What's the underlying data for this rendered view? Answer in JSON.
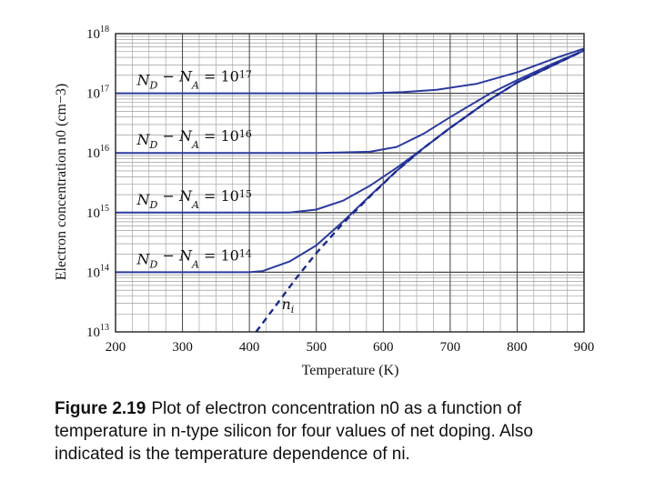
{
  "chart_data": {
    "type": "line",
    "y_scale": "log",
    "xlabel": "Temperature (K)",
    "ylabel": "Electron concentration n0 (cm−3)",
    "xlim": [
      200,
      900
    ],
    "ylim_exponent": [
      13,
      18
    ],
    "x_ticks": [
      200,
      300,
      400,
      500,
      600,
      700,
      800,
      900
    ],
    "y_tick_base": "10",
    "y_tick_exponents": [
      "13",
      "14",
      "15",
      "16",
      "17",
      "18"
    ],
    "grid": true,
    "series": [
      {
        "name": "N_D − N_A = 10^17",
        "label_exponent": "17",
        "style": "solid",
        "color": "#2b3a9e",
        "x": [
          200,
          300,
          400,
          500,
          580,
          630,
          680,
          740,
          800,
          860,
          900
        ],
        "log10_y": [
          17.0,
          17.0,
          17.0,
          17.0,
          17.0,
          17.02,
          17.06,
          17.16,
          17.35,
          17.6,
          17.75
        ]
      },
      {
        "name": "N_D − N_A = 10^16",
        "label_exponent": "16",
        "style": "solid",
        "color": "#2b3a9e",
        "x": [
          200,
          300,
          400,
          500,
          580,
          620,
          660,
          700,
          760,
          800,
          850,
          900
        ],
        "log10_y": [
          16.0,
          16.0,
          16.0,
          16.0,
          16.02,
          16.1,
          16.32,
          16.6,
          17.0,
          17.22,
          17.48,
          17.72
        ]
      },
      {
        "name": "N_D − N_A = 10^15",
        "label_exponent": "15",
        "style": "solid",
        "color": "#2b3a9e",
        "x": [
          200,
          300,
          400,
          460,
          500,
          540,
          580,
          620,
          660,
          700,
          760,
          800,
          850,
          900
        ],
        "log10_y": [
          15.0,
          15.0,
          15.0,
          15.0,
          15.05,
          15.2,
          15.45,
          15.75,
          16.08,
          16.42,
          16.9,
          17.18,
          17.45,
          17.72
        ]
      },
      {
        "name": "N_D − N_A = 10^14",
        "label_exponent": "14",
        "style": "solid",
        "color": "#2b3a9e",
        "x": [
          200,
          300,
          400,
          420,
          460,
          500,
          540,
          580,
          620,
          660,
          700,
          760,
          800,
          850,
          900
        ],
        "log10_y": [
          14.0,
          14.0,
          14.0,
          14.02,
          14.18,
          14.45,
          14.85,
          15.28,
          15.7,
          16.08,
          16.42,
          16.9,
          17.18,
          17.45,
          17.72
        ]
      },
      {
        "name": "n_i",
        "label_text": "n",
        "label_sub": "i",
        "style": "dashed",
        "color": "#1a2a8c",
        "x": [
          410,
          440,
          470,
          500,
          540,
          580,
          620,
          660,
          700,
          760,
          800,
          850,
          900
        ],
        "log10_y": [
          13.0,
          13.45,
          13.9,
          14.32,
          14.82,
          15.27,
          15.7,
          16.08,
          16.42,
          16.9,
          17.18,
          17.45,
          17.72
        ]
      }
    ]
  },
  "caption": {
    "label": "Figure 2.19",
    "text": "Plot of electron concentration n0 as a function of temperature in n-type silicon for four values of net doping. Also indicated is the temperature dependence of ni."
  }
}
